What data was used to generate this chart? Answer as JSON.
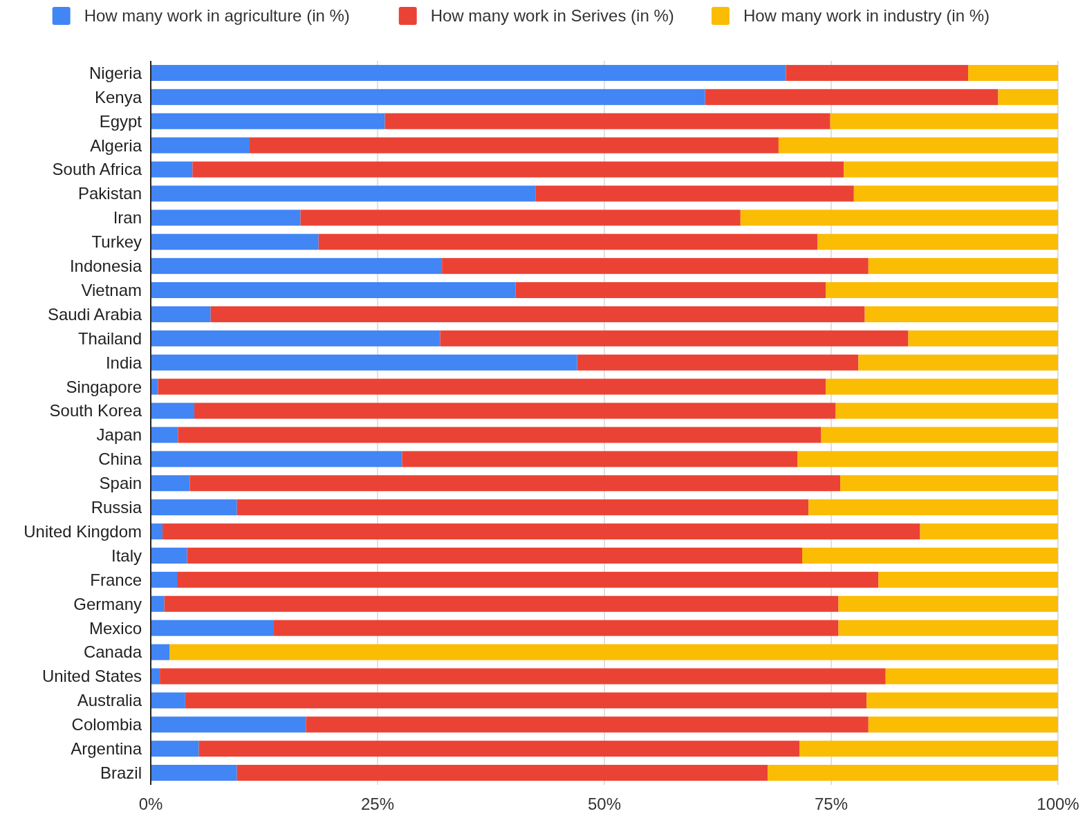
{
  "chart_data": {
    "type": "bar",
    "orientation": "horizontal",
    "stacked": true,
    "legend": "top",
    "grid": "x",
    "categories": [
      "Nigeria",
      "Kenya",
      "Egypt",
      "Algeria",
      "South Africa",
      "Pakistan",
      "Iran",
      "Turkey",
      "Indonesia",
      "Vietnam",
      "Saudi Arabia",
      "Thailand",
      "India",
      "Singapore",
      "South Korea",
      "Japan",
      "China",
      "Spain",
      "Russia",
      "United Kingdom",
      "Italy",
      "France",
      "Germany",
      "Mexico",
      "Canada",
      "United States",
      "Australia",
      "Colombia",
      "Argentina",
      "Brazil"
    ],
    "xlim": [
      0,
      100
    ],
    "xticks": [
      {
        "value": 0,
        "label": "0%"
      },
      {
        "value": 25,
        "label": "25%"
      },
      {
        "value": 50,
        "label": "50%"
      },
      {
        "value": 75,
        "label": "75%"
      },
      {
        "value": 100,
        "label": "100%"
      }
    ],
    "series": [
      {
        "name": "How many work in agriculture (in %)",
        "color": "#4285f4",
        "values": [
          70.0,
          61.1,
          25.8,
          10.9,
          4.6,
          42.4,
          16.5,
          18.5,
          32.1,
          40.2,
          6.6,
          31.9,
          47.0,
          0.8,
          4.8,
          3.0,
          27.7,
          4.3,
          9.5,
          1.3,
          4.0,
          2.9,
          1.5,
          13.5,
          2.1,
          1.0,
          3.8,
          17.1,
          5.3,
          9.5
        ]
      },
      {
        "name": "How many work in Serives (in %)",
        "color": "#ea4335",
        "values": [
          20.1,
          32.3,
          49.1,
          58.3,
          71.8,
          35.1,
          48.5,
          55.0,
          47.0,
          34.2,
          72.1,
          51.6,
          31.0,
          73.6,
          70.7,
          70.9,
          43.6,
          71.7,
          63.0,
          83.5,
          67.8,
          77.3,
          74.3,
          62.3,
          0,
          80.0,
          75.1,
          62.0,
          66.2,
          58.5
        ]
      },
      {
        "name": "How many work in industry (in %)",
        "color": "#fbbc04",
        "values": [
          9.9,
          6.6,
          25.1,
          30.8,
          23.6,
          22.5,
          35.0,
          26.5,
          20.9,
          25.6,
          21.3,
          16.5,
          22.0,
          25.6,
          24.5,
          26.1,
          28.7,
          24.0,
          27.5,
          15.2,
          28.2,
          19.8,
          24.2,
          24.2,
          97.9,
          19.0,
          21.1,
          20.9,
          28.5,
          32.0
        ]
      }
    ]
  }
}
